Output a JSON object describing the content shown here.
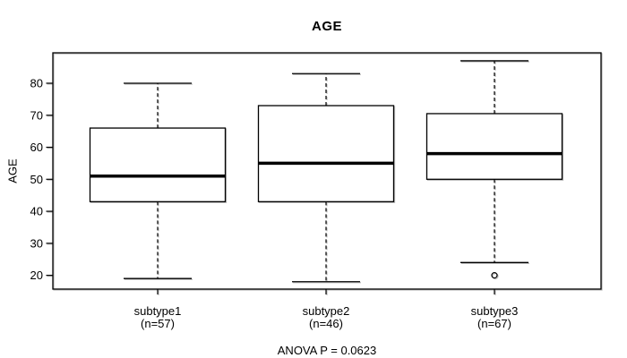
{
  "chart_data": {
    "type": "boxplot",
    "title": "AGE",
    "ylabel": "AGE",
    "annotation": "ANOVA P = 0.0623",
    "yticks": [
      20,
      30,
      40,
      50,
      60,
      70,
      80
    ],
    "ylim": [
      15.7,
      89.5
    ],
    "grid": false,
    "legend": "none",
    "groups": [
      {
        "label": "subtype1",
        "sublabel": "(n=57)",
        "n": 57,
        "whisker_low": 19,
        "q1": 43,
        "median": 51,
        "q3": 66,
        "whisker_high": 80,
        "outliers": []
      },
      {
        "label": "subtype2",
        "sublabel": "(n=46)",
        "n": 46,
        "whisker_low": 18,
        "q1": 43,
        "median": 55,
        "q3": 73,
        "whisker_high": 83,
        "outliers": []
      },
      {
        "label": "subtype3",
        "sublabel": "(n=67)",
        "n": 67,
        "whisker_low": 24,
        "q1": 50,
        "median": 58,
        "q3": 70.5,
        "whisker_high": 87,
        "outliers": [
          20
        ]
      }
    ],
    "colors": {
      "stroke": "#000000",
      "box_fill": "#ffffff",
      "text": "#000000",
      "background": "#ffffff"
    }
  }
}
